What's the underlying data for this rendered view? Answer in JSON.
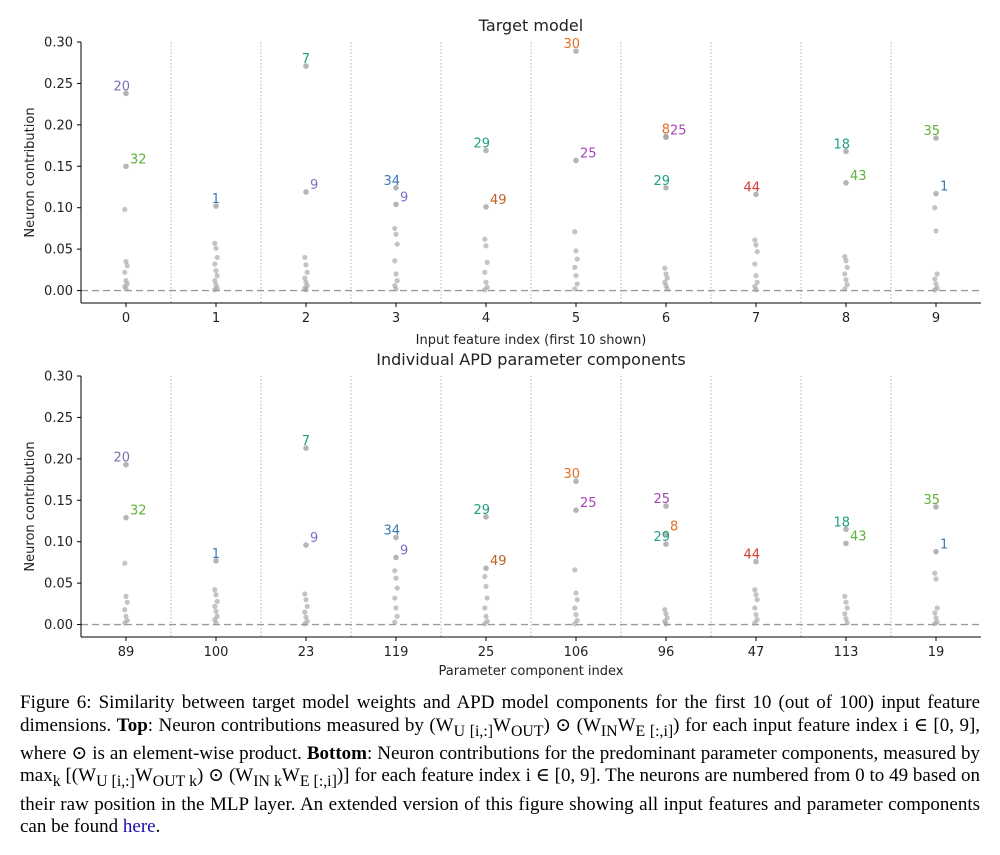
{
  "chart_data": [
    {
      "type": "scatter",
      "title": "Target model",
      "xlabel": "Input feature index (first 10 shown)",
      "ylabel": "Neuron contribution",
      "ylim": [
        -0.015,
        0.3
      ],
      "yticks": [
        "0.00",
        "0.05",
        "0.10",
        "0.15",
        "0.20",
        "0.25",
        "0.30"
      ],
      "yticks_values": [
        0,
        0.05,
        0.1,
        0.15,
        0.2,
        0.25,
        0.3
      ],
      "categories": [
        "0",
        "1",
        "2",
        "3",
        "4",
        "5",
        "6",
        "7",
        "8",
        "9"
      ],
      "reference_line": 0,
      "labeled_points": [
        {
          "col": 0,
          "neuron": "20",
          "value": 0.238,
          "color": "#7c6fb5"
        },
        {
          "col": 0,
          "neuron": "32",
          "value": 0.15,
          "color": "#5fb03a"
        },
        {
          "col": 1,
          "neuron": "1",
          "value": 0.102,
          "color": "#3a78b5"
        },
        {
          "col": 2,
          "neuron": "7",
          "value": 0.271,
          "color": "#1f9e80"
        },
        {
          "col": 2,
          "neuron": "9",
          "value": 0.119,
          "color": "#7b6fc2"
        },
        {
          "col": 3,
          "neuron": "34",
          "value": 0.124,
          "color": "#3a78b5"
        },
        {
          "col": 3,
          "neuron": "9",
          "value": 0.104,
          "color": "#7b6fc2"
        },
        {
          "col": 4,
          "neuron": "29",
          "value": 0.169,
          "color": "#1f9e80"
        },
        {
          "col": 4,
          "neuron": "49",
          "value": 0.101,
          "color": "#c0612a"
        },
        {
          "col": 5,
          "neuron": "30",
          "value": 0.289,
          "color": "#e07020"
        },
        {
          "col": 5,
          "neuron": "25",
          "value": 0.157,
          "color": "#a545b5"
        },
        {
          "col": 6,
          "neuron": "8",
          "value": 0.186,
          "color": "#e07020"
        },
        {
          "col": 6,
          "neuron": "25",
          "value": 0.185,
          "color": "#a545b5"
        },
        {
          "col": 6,
          "neuron": "29",
          "value": 0.124,
          "color": "#1f9e80"
        },
        {
          "col": 7,
          "neuron": "44",
          "value": 0.116,
          "color": "#d83a3a"
        },
        {
          "col": 8,
          "neuron": "18",
          "value": 0.168,
          "color": "#1f9e80"
        },
        {
          "col": 8,
          "neuron": "43",
          "value": 0.13,
          "color": "#5fb03a"
        },
        {
          "col": 9,
          "neuron": "35",
          "value": 0.184,
          "color": "#5fb03a"
        },
        {
          "col": 9,
          "neuron": "1",
          "value": 0.117,
          "color": "#3a78b5"
        }
      ],
      "background_points": [
        [
          0.098,
          0.035,
          0.03,
          0.022,
          0.012,
          0.008,
          0.005,
          0.002
        ],
        [
          0.057,
          0.051,
          0.04,
          0.032,
          0.024,
          0.018,
          0.012,
          0.007,
          0.003,
          0.001
        ],
        [
          0.04,
          0.031,
          0.022,
          0.015,
          0.01,
          0.006,
          0.003,
          0.001
        ],
        [
          0.075,
          0.068,
          0.056,
          0.036,
          0.02,
          0.012,
          0.006,
          0.002
        ],
        [
          0.062,
          0.054,
          0.034,
          0.022,
          0.01,
          0.004,
          0.001
        ],
        [
          0.071,
          0.048,
          0.038,
          0.028,
          0.018,
          0.008,
          0.002
        ],
        [
          0.027,
          0.02,
          0.015,
          0.01,
          0.006,
          0.002
        ],
        [
          0.061,
          0.055,
          0.047,
          0.032,
          0.018,
          0.01,
          0.005,
          0.001
        ],
        [
          0.041,
          0.036,
          0.028,
          0.02,
          0.013,
          0.007,
          0.002
        ],
        [
          0.1,
          0.072,
          0.02,
          0.014,
          0.008,
          0.003,
          0.001
        ]
      ]
    },
    {
      "type": "scatter",
      "title": "Individual APD parameter components",
      "xlabel": "Parameter component index",
      "ylabel": "Neuron contribution",
      "ylim": [
        -0.015,
        0.3
      ],
      "yticks": [
        "0.00",
        "0.05",
        "0.10",
        "0.15",
        "0.20",
        "0.25",
        "0.30"
      ],
      "yticks_values": [
        0,
        0.05,
        0.1,
        0.15,
        0.2,
        0.25,
        0.3
      ],
      "categories": [
        "89",
        "100",
        "23",
        "119",
        "25",
        "106",
        "96",
        "47",
        "113",
        "19"
      ],
      "reference_line": 0,
      "labeled_points": [
        {
          "col": 0,
          "neuron": "20",
          "value": 0.193,
          "color": "#7c6fb5"
        },
        {
          "col": 0,
          "neuron": "32",
          "value": 0.129,
          "color": "#5fb03a"
        },
        {
          "col": 1,
          "neuron": "1",
          "value": 0.077,
          "color": "#3a78b5"
        },
        {
          "col": 2,
          "neuron": "7",
          "value": 0.213,
          "color": "#1f9e80"
        },
        {
          "col": 2,
          "neuron": "9",
          "value": 0.096,
          "color": "#7b6fc2"
        },
        {
          "col": 3,
          "neuron": "34",
          "value": 0.105,
          "color": "#3a78b5"
        },
        {
          "col": 3,
          "neuron": "9",
          "value": 0.081,
          "color": "#7b6fc2"
        },
        {
          "col": 4,
          "neuron": "29",
          "value": 0.13,
          "color": "#1f9e80"
        },
        {
          "col": 4,
          "neuron": "49",
          "value": 0.068,
          "color": "#c0612a"
        },
        {
          "col": 5,
          "neuron": "30",
          "value": 0.173,
          "color": "#e07020"
        },
        {
          "col": 5,
          "neuron": "25",
          "value": 0.138,
          "color": "#a545b5"
        },
        {
          "col": 6,
          "neuron": "25",
          "value": 0.143,
          "color": "#a545b5"
        },
        {
          "col": 6,
          "neuron": "8",
          "value": 0.11,
          "color": "#e07020"
        },
        {
          "col": 6,
          "neuron": "29",
          "value": 0.097,
          "color": "#1f9e80"
        },
        {
          "col": 7,
          "neuron": "44",
          "value": 0.076,
          "color": "#d83a3a"
        },
        {
          "col": 8,
          "neuron": "18",
          "value": 0.115,
          "color": "#1f9e80"
        },
        {
          "col": 8,
          "neuron": "43",
          "value": 0.098,
          "color": "#5fb03a"
        },
        {
          "col": 9,
          "neuron": "35",
          "value": 0.142,
          "color": "#5fb03a"
        },
        {
          "col": 9,
          "neuron": "1",
          "value": 0.088,
          "color": "#3a78b5"
        }
      ],
      "background_points": [
        [
          0.074,
          0.034,
          0.027,
          0.018,
          0.01,
          0.005,
          0.002
        ],
        [
          0.042,
          0.036,
          0.028,
          0.022,
          0.016,
          0.01,
          0.006,
          0.002
        ],
        [
          0.037,
          0.03,
          0.022,
          0.015,
          0.009,
          0.004,
          0.001
        ],
        [
          0.065,
          0.056,
          0.044,
          0.032,
          0.02,
          0.01,
          0.003
        ],
        [
          0.058,
          0.046,
          0.032,
          0.02,
          0.01,
          0.004,
          0.001
        ],
        [
          0.066,
          0.038,
          0.03,
          0.02,
          0.012,
          0.005,
          0.001
        ],
        [
          0.018,
          0.013,
          0.008,
          0.004,
          0.001
        ],
        [
          0.042,
          0.036,
          0.03,
          0.02,
          0.012,
          0.006,
          0.002
        ],
        [
          0.034,
          0.027,
          0.02,
          0.013,
          0.007,
          0.002
        ],
        [
          0.062,
          0.055,
          0.02,
          0.014,
          0.008,
          0.003,
          0.001
        ]
      ]
    }
  ],
  "caption": {
    "figure_label": "Figure 6:",
    "intro": " Similarity between target model weights and APD model components for the first 10 (out of 100) input feature dimensions. ",
    "top_label": "Top",
    "top_text": ": Neuron contributions measured by (W",
    "top_sub_1": "U [i,:]",
    "top_mid_1": "W",
    "top_sub_2": "OUT",
    "top_mid_2": ") ⊙ (W",
    "top_sub_3": "IN",
    "top_mid_3": "W",
    "top_sub_4": "E [:,i]",
    "top_end": ") for each input feature index i ∈ [0, 9], where ⊙ is an element-wise product. ",
    "bottom_label": "Bottom",
    "bottom_text": ": Neuron contributions for the predominant parameter components, measured by max",
    "bottom_sub_k": "k",
    "bottom_mid_1": " [(W",
    "bottom_sub_1": "U [i,:]",
    "bottom_mid_2": "W",
    "bottom_sub_2": "OUT k",
    "bottom_mid_3": ") ⊙ (W",
    "bottom_sub_3": "IN k",
    "bottom_mid_4": "W",
    "bottom_sub_4": "E [:,i]",
    "bottom_end": ")] for each feature index i ∈ [0, 9]. The neurons are numbered from 0 to 49 based on their raw position in the MLP layer. An extended version of this figure showing all input features and parameter components can be found ",
    "link_text": "here",
    "final": "."
  }
}
